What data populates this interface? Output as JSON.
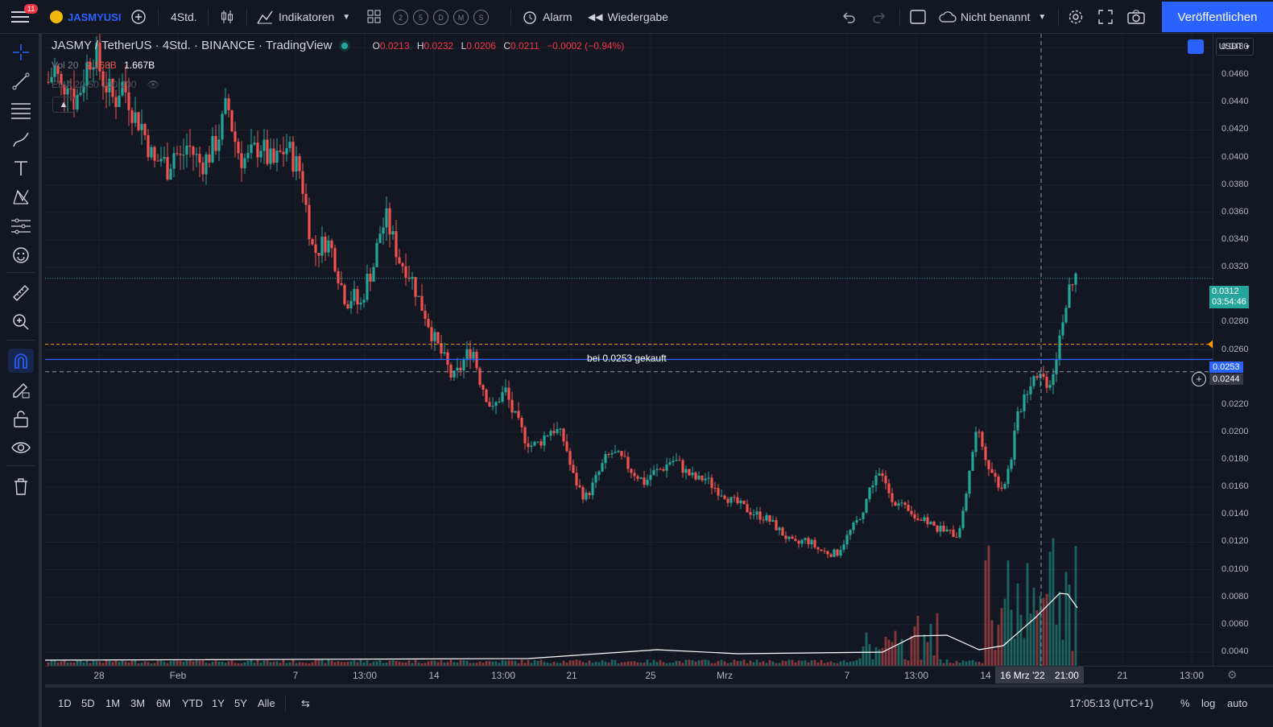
{
  "topbar": {
    "notifications": "11",
    "symbol": "JASMYUSI",
    "interval": "4Std.",
    "indicators": "Indikatoren",
    "intervals_quick": [
      "2",
      "5",
      "D",
      "M",
      "S"
    ],
    "alarm": "Alarm",
    "replay": "Wiedergabe",
    "layout_name": "Nicht benannt",
    "publish": "Veröffentlichen"
  },
  "legend": {
    "title": "JASMY / TetherUS · 4Std. · BINANCE · TradingView",
    "open_label": "O",
    "open": "0.0213",
    "high_label": "H",
    "high": "0.0232",
    "low_label": "L",
    "low": "0.0206",
    "close_label": "C",
    "close": "0.0211",
    "change": "−0.0002 (−0.94%)",
    "volume_label": "Vol 20",
    "volume_a": "2.168B",
    "volume_b": "1.667B",
    "ema_label": "EMA 20 50 100 200"
  },
  "annotation": "bei 0.0253 gekauft",
  "price_axis": {
    "currency": "USDT",
    "ticks": [
      "0.0480",
      "0.0460",
      "0.0440",
      "0.0420",
      "0.0400",
      "0.0380",
      "0.0360",
      "0.0340",
      "0.0320",
      "0.0280",
      "0.0260",
      "0.0220",
      "0.0200",
      "0.0180",
      "0.0160",
      "0.0140",
      "0.0120",
      "0.0100",
      "0.0080",
      "0.0060",
      "0.0040"
    ],
    "current_price": "0.0312",
    "countdown": "03:54:46",
    "line_price": "0.0253",
    "crosshair_price": "0.0244"
  },
  "time_axis": {
    "labels": [
      "28",
      "Feb",
      "7",
      "13:00",
      "14",
      "13:00",
      "21",
      "25",
      "Mrz",
      "7",
      "13:00",
      "14",
      "21",
      "13:00"
    ],
    "crosshair_date": "16 Mrz '22",
    "crosshair_time": "21:00"
  },
  "bottombar": {
    "ranges": [
      "1D",
      "5D",
      "1M",
      "3M",
      "6M",
      "YTD",
      "1Y",
      "5Y",
      "Alle"
    ],
    "clock": "17:05:13 (UTC+1)",
    "percent": "%",
    "log": "log",
    "auto": "auto"
  },
  "colors": {
    "up": "#26a69a",
    "down": "#ef5350",
    "accent": "#2962ff",
    "bg": "#131722"
  },
  "chart_data": {
    "type": "candlestick",
    "symbol": "JASMY/USDT",
    "ylim": [
      0.003,
      0.049
    ],
    "closes": [
      0.0455,
      0.0465,
      0.0448,
      0.046,
      0.044,
      0.0452,
      0.047,
      0.0478,
      0.046,
      0.045,
      0.044,
      0.0455,
      0.0445,
      0.043,
      0.0425,
      0.041,
      0.0395,
      0.04,
      0.0392,
      0.0405,
      0.0398,
      0.041,
      0.0402,
      0.0395,
      0.04,
      0.0408,
      0.042,
      0.044,
      0.0415,
      0.04,
      0.0398,
      0.0404,
      0.041,
      0.04,
      0.0395,
      0.0402,
      0.0408,
      0.0398,
      0.039,
      0.036,
      0.033,
      0.0335,
      0.034,
      0.033,
      0.031,
      0.0295,
      0.03,
      0.029,
      0.031,
      0.032,
      0.0345,
      0.0355,
      0.034,
      0.0325,
      0.032,
      0.031,
      0.0295,
      0.0285,
      0.027,
      0.026,
      0.025,
      0.0238,
      0.0245,
      0.0255,
      0.0262,
      0.024,
      0.0228,
      0.0215,
      0.0225,
      0.023,
      0.0215,
      0.0205,
      0.0195,
      0.019,
      0.0192,
      0.0198,
      0.0203,
      0.02,
      0.0192,
      0.017,
      0.016,
      0.0152,
      0.016,
      0.017,
      0.018,
      0.0185,
      0.0182,
      0.0178,
      0.0172,
      0.0168,
      0.0163,
      0.017,
      0.0172,
      0.0175,
      0.018,
      0.0178,
      0.0172,
      0.0168,
      0.0165,
      0.0167,
      0.0162,
      0.0158,
      0.0155,
      0.015,
      0.0148,
      0.0145,
      0.0142,
      0.014,
      0.0138,
      0.0135,
      0.013,
      0.0125,
      0.012,
      0.0118,
      0.0122,
      0.012,
      0.0115,
      0.0113,
      0.0112,
      0.0112,
      0.012,
      0.0128,
      0.0135,
      0.0145,
      0.016,
      0.017,
      0.0165,
      0.0155,
      0.0148,
      0.0145,
      0.014,
      0.0138,
      0.0135,
      0.0134,
      0.013,
      0.0128,
      0.0127,
      0.0125,
      0.014,
      0.0175,
      0.02,
      0.019,
      0.0175,
      0.0165,
      0.016,
      0.0175,
      0.0205,
      0.0225,
      0.0235,
      0.0245,
      0.024,
      0.0235,
      0.0255,
      0.0285,
      0.03,
      0.0312
    ],
    "volume_ma_description": "white moving average line on volume"
  }
}
